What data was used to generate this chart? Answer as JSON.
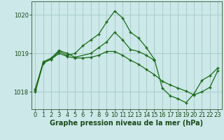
{
  "title": "Graphe pression niveau de la mer (hPa)",
  "background_color": "#cce8e8",
  "grid_color": "#aacccc",
  "line_color": "#1a6b1a",
  "x_ticks": [
    0,
    1,
    2,
    3,
    4,
    5,
    6,
    7,
    8,
    9,
    10,
    11,
    12,
    13,
    14,
    15,
    16,
    17,
    18,
    19,
    20,
    21,
    22,
    23
  ],
  "ylim": [
    1017.55,
    1020.35
  ],
  "yticks": [
    1018,
    1019,
    1020
  ],
  "series1_x": [
    0,
    1,
    2,
    3,
    4,
    5,
    6,
    7,
    8,
    9,
    10,
    11,
    12,
    13,
    14,
    15,
    16,
    17,
    18,
    19,
    20,
    21,
    22,
    23
  ],
  "series1_y": [
    1018.05,
    1018.75,
    1018.85,
    1019.05,
    1018.95,
    1019.0,
    1019.2,
    1019.35,
    1019.5,
    1019.82,
    1020.1,
    1019.92,
    1019.55,
    1019.4,
    1019.15,
    1018.85,
    1018.1,
    1017.9,
    1017.82,
    1017.72,
    1017.95,
    1018.3,
    1018.42,
    1018.62
  ],
  "series2_x": [
    0,
    1,
    2,
    3,
    4,
    5,
    6,
    7,
    8,
    9,
    10,
    11,
    12,
    13,
    14,
    15,
    16,
    17,
    18,
    19,
    20,
    21,
    22,
    23
  ],
  "series2_y": [
    1018.0,
    1018.75,
    1018.85,
    1019.0,
    1018.92,
    1018.88,
    1018.88,
    1018.9,
    1018.95,
    1019.05,
    1019.05,
    1018.95,
    1018.82,
    1018.72,
    1018.58,
    1018.45,
    1018.28,
    1018.18,
    1018.1,
    1018.02,
    1017.92,
    1018.0,
    1018.12,
    1018.55
  ],
  "series3_x": [
    0,
    1,
    2,
    3,
    4,
    5,
    7,
    8,
    9,
    10,
    11,
    12,
    13,
    14,
    15
  ],
  "series3_y": [
    1018.08,
    1018.78,
    1018.88,
    1019.08,
    1019.0,
    1018.9,
    1019.0,
    1019.15,
    1019.3,
    1019.55,
    1019.35,
    1019.1,
    1019.05,
    1018.95,
    1018.82
  ],
  "xlabel_fontsize": 7.0,
  "tick_fontsize": 6.0
}
